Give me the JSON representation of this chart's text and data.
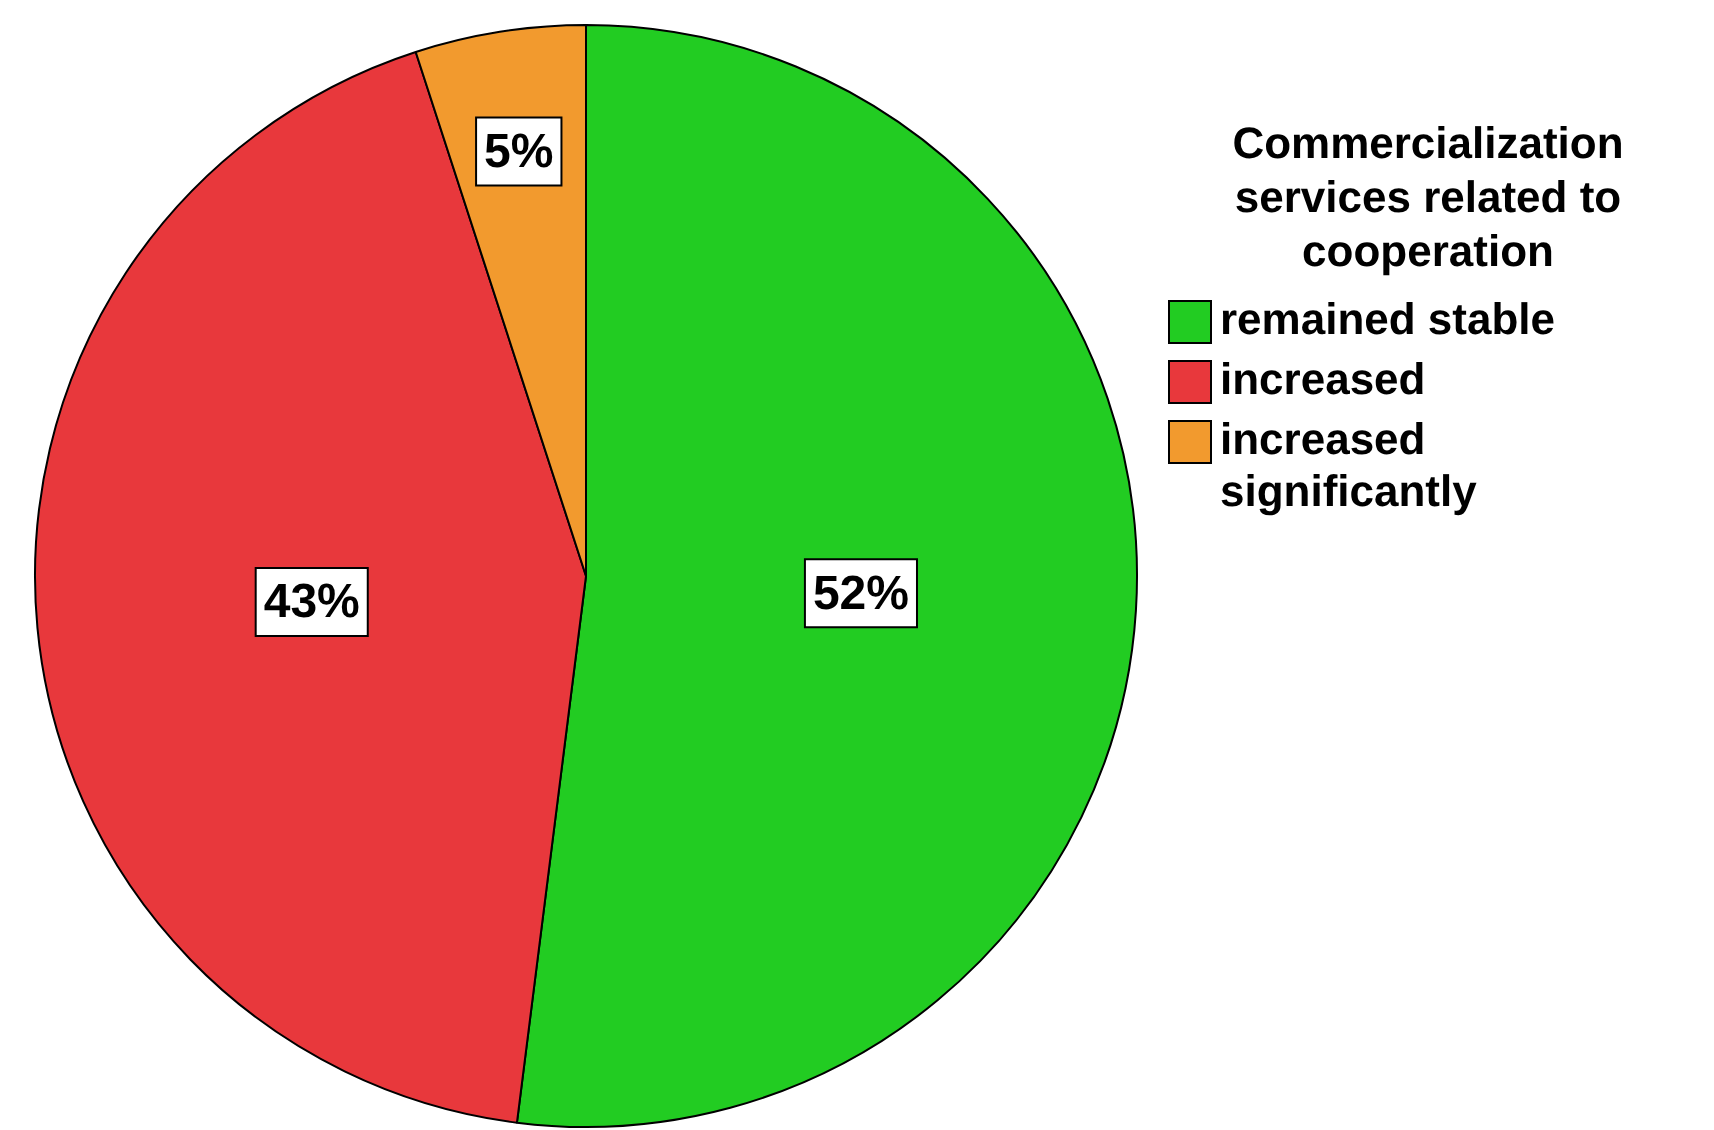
{
  "chart_data": {
    "type": "pie",
    "legend_title": "Commercialization services related to cooperation",
    "categories": [
      "remained stable",
      "increased",
      "increased significantly"
    ],
    "values": [
      52,
      43,
      5
    ],
    "colors": [
      "#22cc22",
      "#e8383c",
      "#f29a2e"
    ],
    "value_labels": [
      "52%",
      "43%",
      "5%"
    ],
    "legend": "right"
  }
}
